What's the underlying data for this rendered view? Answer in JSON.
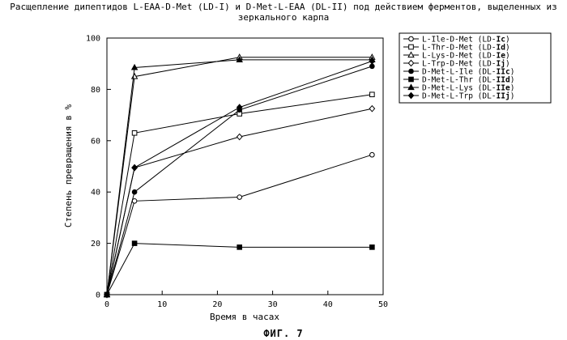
{
  "figure_caption": "ФИГ. 7",
  "chart_data": {
    "type": "line",
    "title": "Расщепление дипептидов L-EAA-D-Met (LD-I) и D-Met-L-EAA (DL-II) под действием ферментов, выделенных из зеркального карпа",
    "xlabel": "Время в часах",
    "ylabel": "Степень превращения в %",
    "xlim": [
      0,
      50
    ],
    "ylim": [
      0,
      100
    ],
    "xticks": [
      0,
      10,
      20,
      30,
      40,
      50
    ],
    "yticks": [
      0,
      20,
      40,
      60,
      80,
      100
    ],
    "grid": false,
    "legend_position": "top-right",
    "x": [
      0,
      5,
      24,
      48
    ],
    "series": [
      {
        "name": "L-Ile-D-Met (LD-Ic)",
        "label": "L-Ile-D-Met",
        "code_plain": "LD-",
        "code_bold": "Ic",
        "marker": "circle-open",
        "values": [
          0,
          36.5,
          38,
          54.5
        ]
      },
      {
        "name": "L-Thr-D-Met (LD-Id)",
        "label": "L-Thr-D-Met",
        "code_plain": "LD-",
        "code_bold": "Id",
        "marker": "square-open",
        "values": [
          0,
          63,
          70.5,
          78
        ]
      },
      {
        "name": "L-Lys-D-Met (LD-Ie)",
        "label": "L-Lys-D-Met",
        "code_plain": "LD-",
        "code_bold": "Ie",
        "marker": "triangle-open",
        "values": [
          0,
          85,
          92.5,
          92.5
        ]
      },
      {
        "name": "L-Trp-D-Met (LD-Ij)",
        "label": "L-Trp-D-Met",
        "code_plain": "LD-",
        "code_bold": "Ij",
        "marker": "diamond-open",
        "values": [
          0,
          49.5,
          61.5,
          72.5
        ]
      },
      {
        "name": "D-Met-L-Ile (DL-IIc)",
        "label": "D-Met-L-Ile",
        "code_plain": "DL-",
        "code_bold": "IIc",
        "marker": "circle-filled",
        "values": [
          0,
          40,
          72,
          89
        ]
      },
      {
        "name": "D-Met-L-Thr (DL-IId)",
        "label": "D-Met-L-Thr",
        "code_plain": "DL-",
        "code_bold": "IId",
        "marker": "square-filled",
        "values": [
          0,
          20,
          18.5,
          18.5
        ]
      },
      {
        "name": "D-Met-L-Lys (DL-IIe)",
        "label": "D-Met-L-Lys",
        "code_plain": "DL-",
        "code_bold": "IIe",
        "marker": "triangle-filled",
        "values": [
          0,
          88.5,
          91.5,
          91.5
        ]
      },
      {
        "name": "D-Met-L-Trp (DL-IIj)",
        "label": "D-Met-L-Trp",
        "code_plain": "DL-",
        "code_bold": "IIj",
        "marker": "diamond-filled",
        "values": [
          0,
          49.5,
          73,
          91
        ]
      }
    ]
  }
}
